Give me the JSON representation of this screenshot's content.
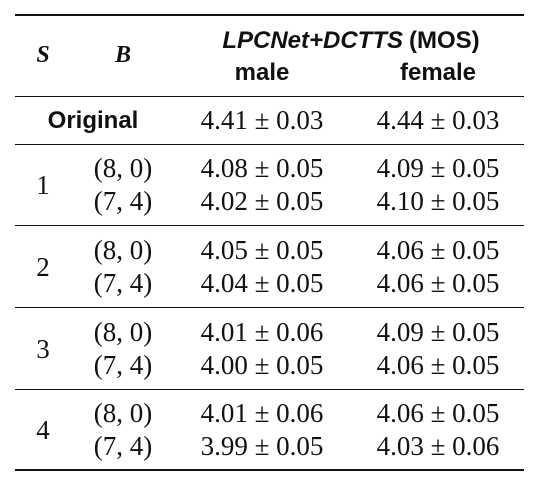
{
  "table": {
    "header": {
      "col_s": "S",
      "col_b": "B",
      "group_title_model": "LPCNet+DCTTS",
      "group_title_metric": "(MOS)",
      "col_male": "male",
      "col_female": "female"
    },
    "original": {
      "label": "Original",
      "male": "4.41 ± 0.03",
      "female": "4.44 ± 0.03"
    },
    "groups": [
      {
        "s": "1",
        "rows": [
          {
            "b": "(8, 0)",
            "male": "4.08 ± 0.05",
            "female": "4.09 ± 0.05"
          },
          {
            "b": "(7, 4)",
            "male": "4.02 ± 0.05",
            "female": "4.10 ± 0.05"
          }
        ]
      },
      {
        "s": "2",
        "rows": [
          {
            "b": "(8, 0)",
            "male": "4.05 ± 0.05",
            "female": "4.06 ± 0.05"
          },
          {
            "b": "(7, 4)",
            "male": "4.04 ± 0.05",
            "female": "4.06 ± 0.05"
          }
        ]
      },
      {
        "s": "3",
        "rows": [
          {
            "b": "(8, 0)",
            "male": "4.01 ± 0.06",
            "female": "4.09 ± 0.05"
          },
          {
            "b": "(7, 4)",
            "male": "4.00 ± 0.05",
            "female": "4.06 ± 0.05"
          }
        ]
      },
      {
        "s": "4",
        "rows": [
          {
            "b": "(8, 0)",
            "male": "4.01 ± 0.06",
            "female": "4.06 ± 0.05"
          },
          {
            "b": "(7, 4)",
            "male": "3.99 ± 0.05",
            "female": "4.03 ± 0.06"
          }
        ]
      }
    ]
  }
}
